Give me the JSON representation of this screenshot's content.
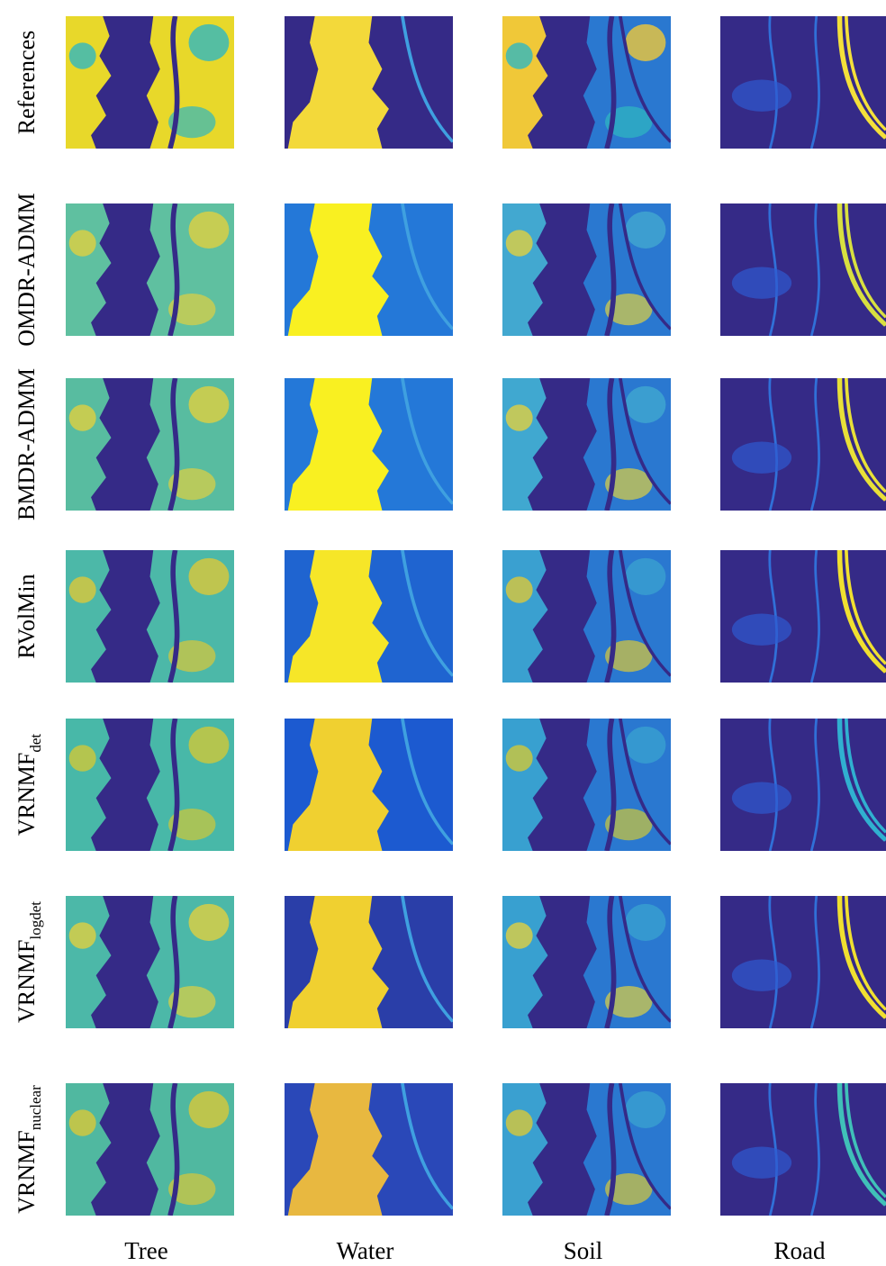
{
  "rows": [
    {
      "label": "References"
    },
    {
      "label": "OMDR-ADMM"
    },
    {
      "label": "BMDR-ADMM"
    },
    {
      "label": "RVolMin"
    },
    {
      "label": "VRNMF",
      "subscript": "det"
    },
    {
      "label": "VRNMF",
      "subscript": "logdet"
    },
    {
      "label": "VRNMF",
      "subscript": "nuclear"
    }
  ],
  "columns": [
    "Tree",
    "Water",
    "Soil",
    "Road"
  ]
}
